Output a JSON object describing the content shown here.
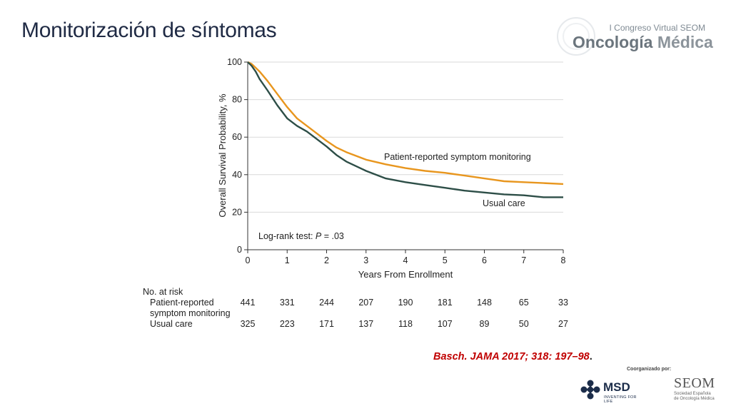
{
  "slide": {
    "title": "Monitorización de síntomas",
    "congress": {
      "top": "I Congreso Virtual SEOM",
      "main_a": "Oncología",
      "main_b": " Médica"
    },
    "citation": {
      "text": "Basch. JAMA 2017; 318: 197–98",
      "tail": "."
    },
    "sponsors": {
      "coorganized_by": "Coorganizado por:",
      "msd": {
        "name": "MSD",
        "tagline": "INVENTING FOR LIFE"
      },
      "seom": {
        "name": "SEOM",
        "line1": "Sociedad Española",
        "line2": "de Oncología Médica"
      }
    }
  },
  "chart_data": {
    "type": "line",
    "xlabel": "Years From Enrollment",
    "ylabel": "Overall Survival Probability, %",
    "xlim": [
      0,
      8
    ],
    "ylim": [
      0,
      100
    ],
    "xticks": [
      0,
      1,
      2,
      3,
      4,
      5,
      6,
      7,
      8
    ],
    "yticks": [
      0,
      20,
      40,
      60,
      80,
      100
    ],
    "grid": "horizontal",
    "annotation": "Log-rank test: P = .03",
    "annotation_prefix": "Log-rank test: ",
    "annotation_p": "P",
    "annotation_suffix": " = .03",
    "series": [
      {
        "name": "Patient-reported symptom monitoring",
        "color": "#e8961e",
        "x": [
          0,
          0.1,
          0.2,
          0.3,
          0.5,
          0.75,
          1.0,
          1.25,
          1.5,
          1.75,
          2.0,
          2.25,
          2.5,
          3.0,
          3.5,
          4.0,
          4.5,
          5.0,
          5.5,
          6.0,
          6.5,
          7.0,
          7.5,
          8.0
        ],
        "y": [
          100,
          99,
          97,
          95,
          90,
          83,
          76,
          70,
          66,
          62,
          58,
          54.5,
          52,
          48,
          45.5,
          43.5,
          42,
          41,
          39.5,
          38,
          36.5,
          36,
          35.5,
          35
        ]
      },
      {
        "name": "Usual care",
        "color": "#2d4e47",
        "x": [
          0,
          0.1,
          0.2,
          0.3,
          0.5,
          0.75,
          1.0,
          1.25,
          1.5,
          1.75,
          2.0,
          2.25,
          2.5,
          3.0,
          3.5,
          4.0,
          4.5,
          5.0,
          5.5,
          6.0,
          6.5,
          7.0,
          7.5,
          8.0
        ],
        "y": [
          100,
          98,
          95,
          91,
          85,
          77,
          70,
          66,
          63,
          59,
          55,
          50.5,
          47,
          42,
          38,
          36,
          34.5,
          33,
          31.5,
          30.5,
          29.5,
          29,
          28,
          28
        ]
      }
    ],
    "series_labels": [
      {
        "text": "Patient-reported symptom monitoring",
        "color": "#222"
      },
      {
        "text": "Usual care",
        "color": "#222"
      }
    ],
    "at_risk": {
      "title": "No. at risk",
      "rows": [
        {
          "label_lines": [
            "Patient-reported",
            "symptom monitoring"
          ],
          "values": [
            441,
            331,
            244,
            207,
            190,
            181,
            148,
            65,
            33
          ]
        },
        {
          "label_lines": [
            "Usual care"
          ],
          "values": [
            325,
            223,
            171,
            137,
            118,
            107,
            89,
            50,
            27
          ]
        }
      ]
    }
  }
}
